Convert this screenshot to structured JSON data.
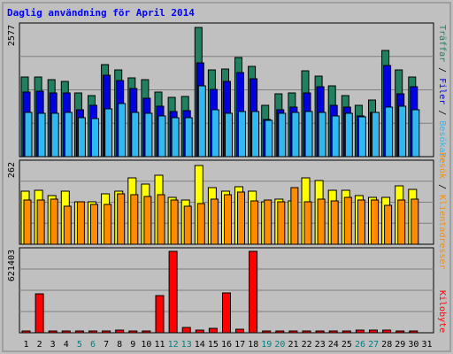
{
  "chart_data": {
    "type": "bar",
    "title": "Daglig användning för April 2014",
    "categories": [
      "1",
      "2",
      "3",
      "4",
      "5",
      "6",
      "7",
      "8",
      "9",
      "10",
      "11",
      "12",
      "13",
      "14",
      "15",
      "16",
      "17",
      "18",
      "19",
      "20",
      "21",
      "22",
      "23",
      "24",
      "25",
      "26",
      "27",
      "28",
      "29",
      "30",
      "31"
    ],
    "weekend_days": [
      "5",
      "6",
      "12",
      "13",
      "19",
      "20",
      "26",
      "27"
    ],
    "grid": true,
    "colors": {
      "background": "#c0c0c0",
      "frame": "#ffffff",
      "title": "#0000ff",
      "traffar": "#208060",
      "filer": "#0000e0",
      "besokare": "#30b8f0",
      "klientadresser": "#ffff00",
      "besok": "#ff8c00",
      "kilobyte": "#ff0000",
      "weekday_label": "#000000",
      "weekend_label": "#008080"
    },
    "panels": [
      {
        "id": "top",
        "ymax_label": "2577",
        "ylim": [
          0,
          2577
        ],
        "series": [
          {
            "name": "Träffar",
            "color": "#208060",
            "values": [
              1550,
              1550,
              1500,
              1470,
              1240,
              1200,
              1800,
              1700,
              1540,
              1500,
              1260,
              1160,
              1170,
              2530,
              1700,
              1720,
              1930,
              1760,
              1000,
              1230,
              1250,
              1680,
              1580,
              1380,
              1200,
              1000,
              1100,
              2070,
              1700,
              1550,
              0
            ]
          },
          {
            "name": "Filer",
            "color": "#0000e0",
            "values": [
              1270,
              1280,
              1250,
              1240,
              920,
              1010,
              1590,
              1480,
              1330,
              1140,
              980,
              880,
              900,
              1830,
              1310,
              1470,
              1650,
              1520,
              730,
              920,
              960,
              1240,
              1370,
              1010,
              960,
              790,
              860,
              1790,
              1220,
              1360,
              0
            ]
          },
          {
            "name": "Besökare",
            "color": "#30b8f0",
            "values": [
              860,
              840,
              840,
              860,
              760,
              750,
              930,
              1040,
              870,
              840,
              800,
              760,
              760,
              1380,
              910,
              850,
              890,
              890,
              710,
              840,
              860,
              880,
              870,
              790,
              850,
              780,
              860,
              970,
              980,
              910,
              0
            ]
          }
        ]
      },
      {
        "id": "middle",
        "ymax_label": "262",
        "ylim": [
          0,
          262
        ],
        "series": [
          {
            "name": "Klientadresser",
            "color": "#ffff00",
            "values": [
              170,
              172,
              155,
              170,
              135,
              135,
              160,
              170,
              210,
              192,
              220,
              150,
              140,
              250,
              180,
              170,
              184,
              170,
              136,
              145,
              138,
              210,
              204,
              172,
              171,
              155,
              149,
              150,
              187,
              175,
              0
            ]
          },
          {
            "name": "Besök",
            "color": "#ff8c00",
            "values": [
              142,
              142,
              145,
              120,
              136,
              128,
              126,
              160,
              159,
              152,
              158,
              142,
              120,
              130,
              145,
              158,
              165,
              138,
              140,
              134,
              180,
              136,
              145,
              138,
              148,
              140,
              140,
              125,
              140,
              145,
              0
            ]
          }
        ]
      },
      {
        "id": "bottom",
        "ymax_label": "621403",
        "ylim": [
          0,
          621403
        ],
        "series": [
          {
            "name": "Kilobyte",
            "color": "#ff0000",
            "values": [
              15000,
              288000,
              10000,
              10000,
              10000,
              12000,
              15000,
              20000,
              15000,
              15000,
              278000,
              610000,
              40000,
              20000,
              35000,
              295000,
              25000,
              605000,
              8000,
              10000,
              10000,
              12000,
              10000,
              12000,
              15000,
              20000,
              18000,
              20000,
              12000,
              10000,
              0
            ]
          }
        ]
      }
    ],
    "right_labels": {
      "top": [
        {
          "text": "Träffar",
          "color": "#208060"
        },
        {
          "text": " / ",
          "color": "#000000"
        },
        {
          "text": "Filer",
          "color": "#0000e0"
        },
        {
          "text": " / ",
          "color": "#000000"
        },
        {
          "text": "Besökare",
          "color": "#30b8f0"
        }
      ],
      "middle": [
        {
          "text": "Besök",
          "color": "#ff8c00"
        },
        {
          "text": " / ",
          "color": "#000000"
        },
        {
          "text": "Klientadresser",
          "color": "#ff8c00"
        }
      ],
      "bottom": [
        {
          "text": "Kilobyte",
          "color": "#ff0000"
        }
      ]
    }
  }
}
